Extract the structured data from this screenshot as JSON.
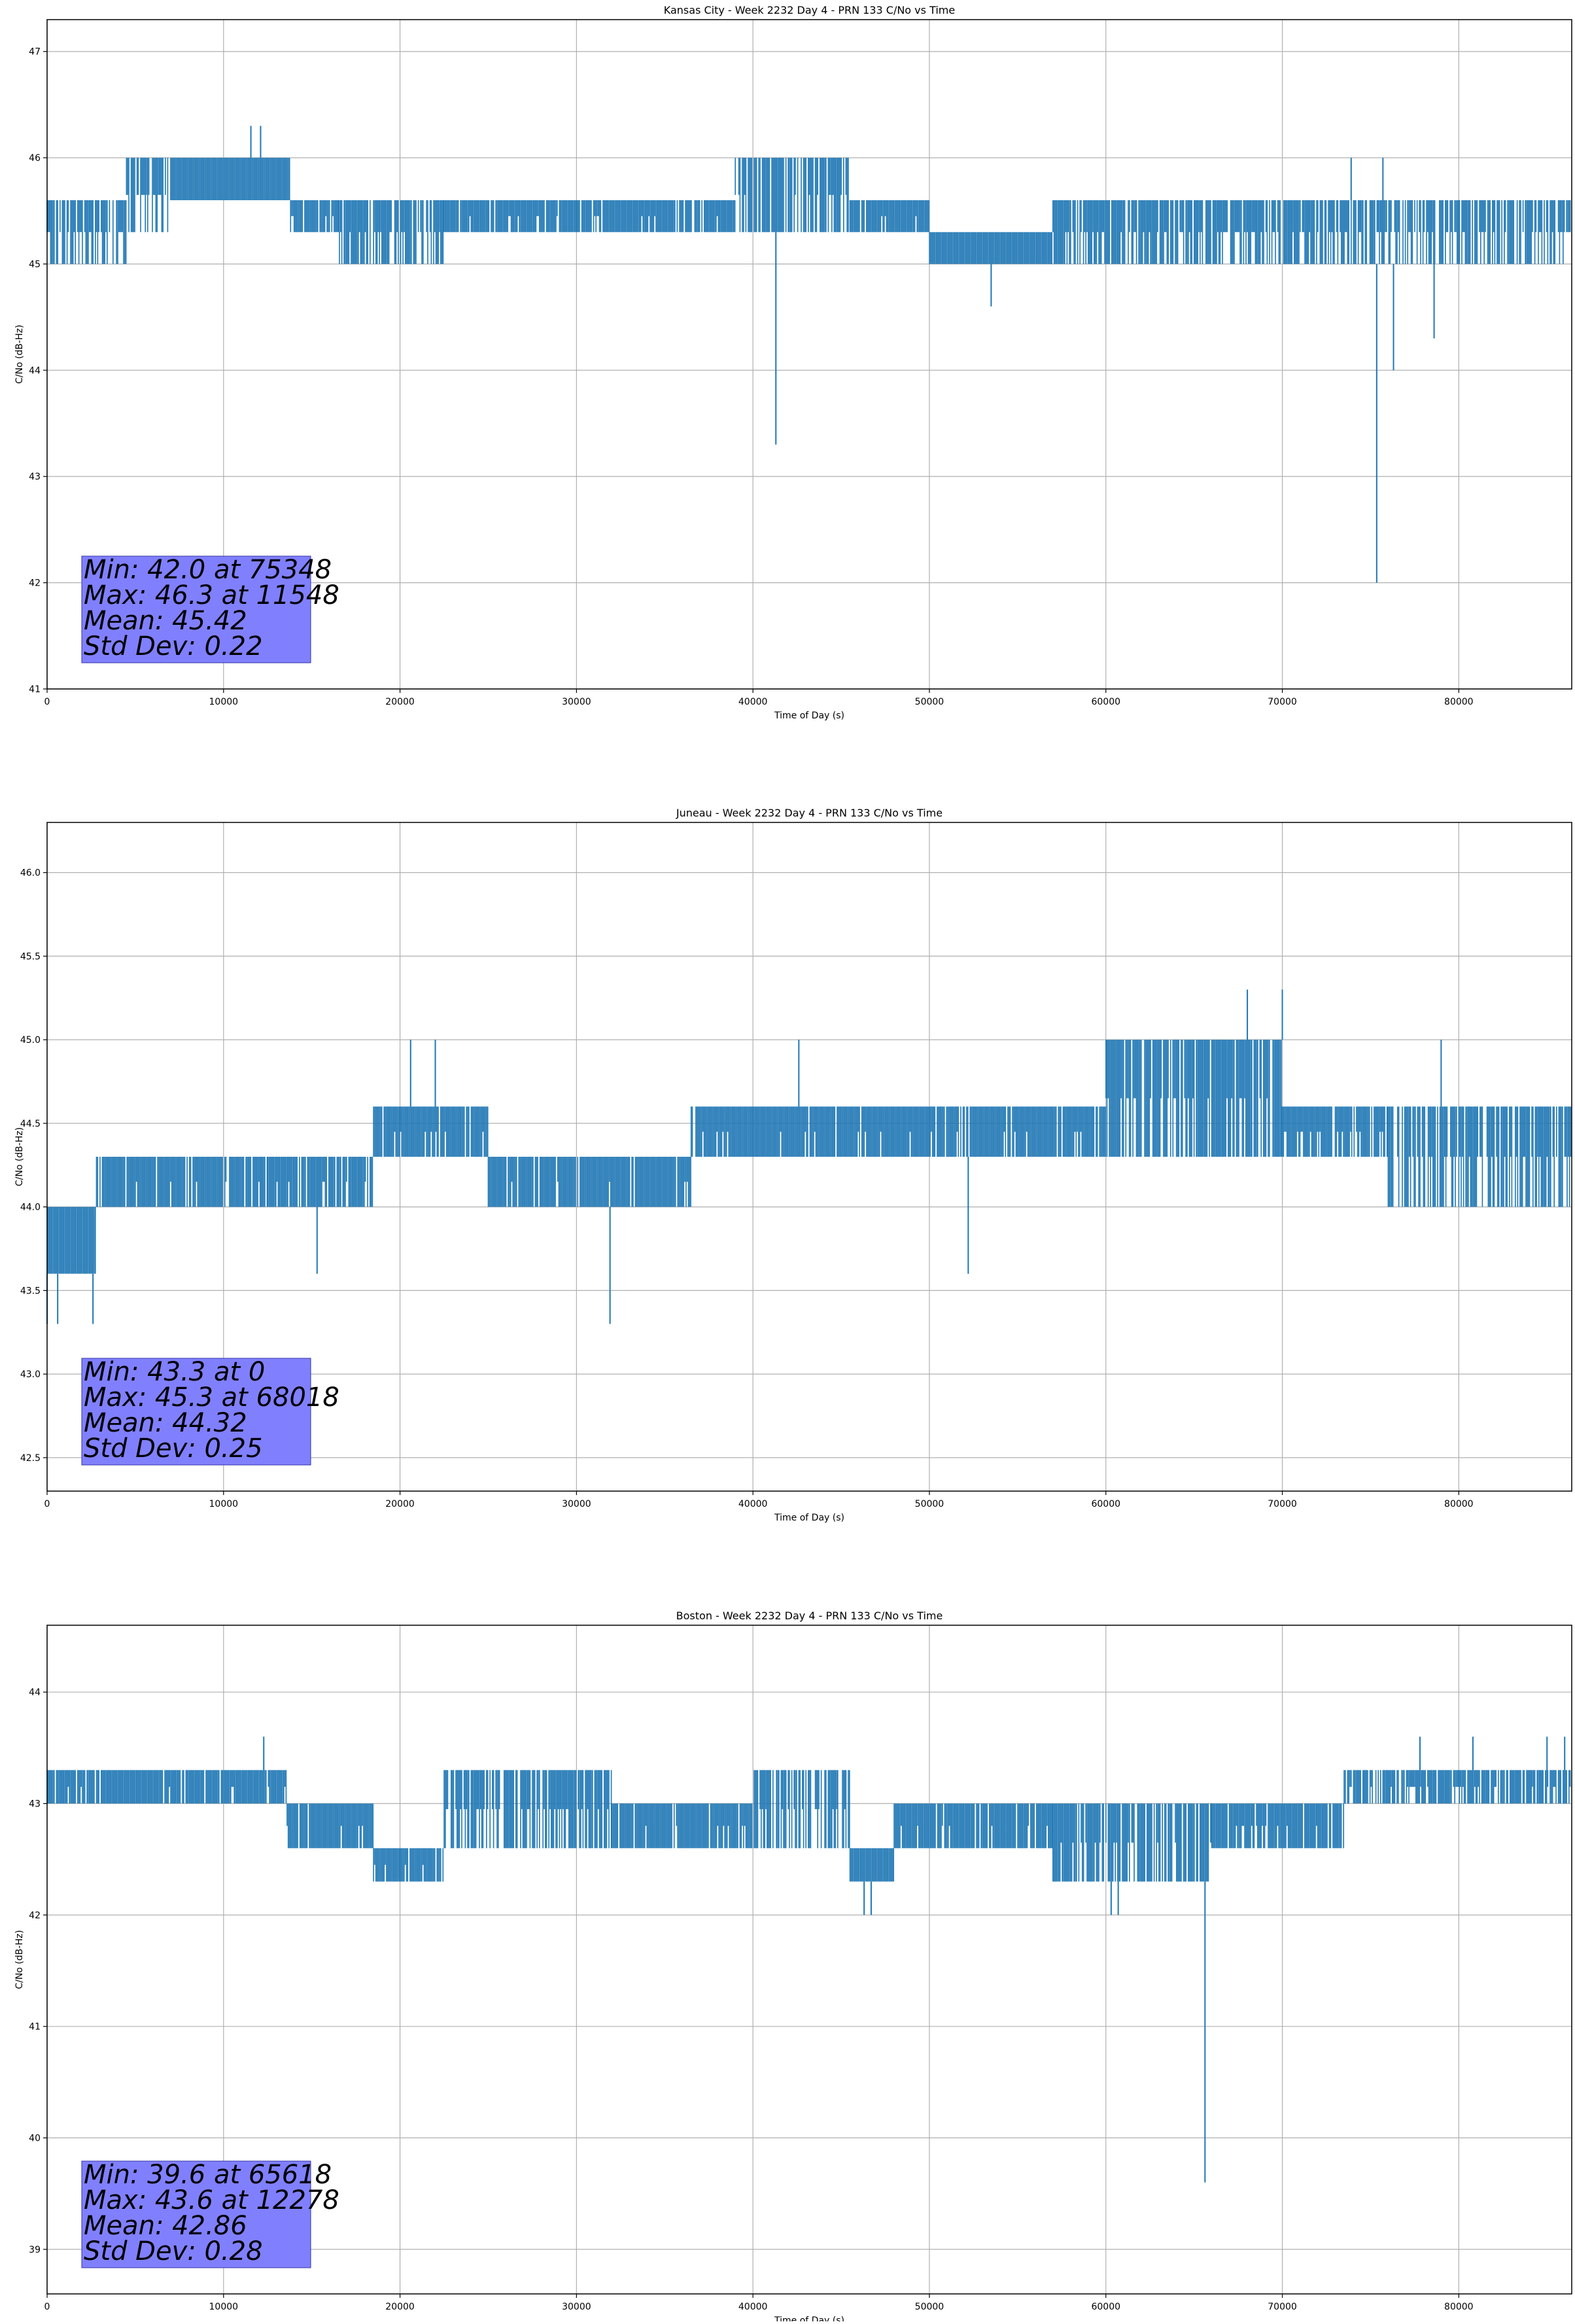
{
  "chart_data": [
    {
      "type": "line",
      "title": "Kansas City - Week 2232 Day 4 - PRN 133 C/No vs Time",
      "xlabel": "Time of Day (s)",
      "ylabel": "C/No (dB-Hz)",
      "xlim": [
        0,
        86400
      ],
      "ylim": [
        41,
        47.3
      ],
      "xticks": [
        0,
        10000,
        20000,
        30000,
        40000,
        50000,
        60000,
        70000,
        80000
      ],
      "yticks": [
        41,
        42,
        43,
        44,
        45,
        46,
        47
      ],
      "ytick_labels": [
        "41",
        "42",
        "43",
        "44",
        "45",
        "46",
        "47"
      ],
      "grid": true,
      "series_color": "#1f77b4",
      "segments": [
        {
          "x": [
            0,
            4500
          ],
          "y": [
            45.0,
            45.6
          ],
          "dense": 0.5
        },
        {
          "x": [
            4500,
            7000
          ],
          "y": [
            45.3,
            46.0
          ],
          "dense": 0.6
        },
        {
          "x": [
            7000,
            13800
          ],
          "y": [
            45.6,
            46.0
          ],
          "dense": 1.0
        },
        {
          "x": [
            13800,
            16500
          ],
          "y": [
            45.3,
            45.6
          ],
          "dense": 0.9
        },
        {
          "x": [
            16500,
            22500
          ],
          "y": [
            45.0,
            45.6
          ],
          "dense": 0.6
        },
        {
          "x": [
            22500,
            39000
          ],
          "y": [
            45.3,
            45.6
          ],
          "dense": 0.9
        },
        {
          "x": [
            39000,
            45500
          ],
          "y": [
            45.3,
            46.0
          ],
          "dense": 0.6
        },
        {
          "x": [
            45500,
            50000
          ],
          "y": [
            45.3,
            45.6
          ],
          "dense": 0.9
        },
        {
          "x": [
            50000,
            57000
          ],
          "y": [
            45.0,
            45.3
          ],
          "dense": 1.0
        },
        {
          "x": [
            57000,
            73500
          ],
          "y": [
            45.0,
            45.6
          ],
          "dense": 0.6
        },
        {
          "x": [
            73500,
            86400
          ],
          "y": [
            45.0,
            45.6
          ],
          "dense": 0.55
        }
      ],
      "spikes": [
        {
          "x": 11548,
          "y": 46.3
        },
        {
          "x": 12100,
          "y": 46.3
        },
        {
          "x": 41300,
          "y": 43.3
        },
        {
          "x": 53500,
          "y": 44.6
        },
        {
          "x": 73900,
          "y": 46.0
        },
        {
          "x": 75348,
          "y": 42.0
        },
        {
          "x": 75700,
          "y": 46.0
        },
        {
          "x": 76300,
          "y": 44.0
        },
        {
          "x": 78600,
          "y": 44.3
        }
      ],
      "stats_box": [
        "Min: 42.0 at 75348",
        "Max: 46.3 at 11548",
        "Mean: 45.42",
        "Std Dev: 0.22"
      ]
    },
    {
      "type": "line",
      "title": "Juneau - Week 2232 Day 4 - PRN 133 C/No vs Time",
      "xlabel": "Time of Day (s)",
      "ylabel": "C/No (dB-Hz)",
      "xlim": [
        0,
        86400
      ],
      "ylim": [
        42.3,
        46.3
      ],
      "xticks": [
        0,
        10000,
        20000,
        30000,
        40000,
        50000,
        60000,
        70000,
        80000
      ],
      "yticks": [
        42.5,
        43.0,
        43.5,
        44.0,
        44.5,
        45.0,
        45.5,
        46.0
      ],
      "ytick_labels": [
        "42.5",
        "43.0",
        "43.5",
        "44.0",
        "44.5",
        "45.0",
        "45.5",
        "46.0"
      ],
      "grid": true,
      "series_color": "#1f77b4",
      "segments": [
        {
          "x": [
            0,
            2800
          ],
          "y": [
            43.6,
            44.0
          ],
          "dense": 1.0
        },
        {
          "x": [
            2800,
            12500
          ],
          "y": [
            44.0,
            44.3
          ],
          "dense": 0.9
        },
        {
          "x": [
            12500,
            18500
          ],
          "y": [
            44.0,
            44.3
          ],
          "dense": 0.8
        },
        {
          "x": [
            18500,
            25000
          ],
          "y": [
            44.3,
            44.6
          ],
          "dense": 0.9
        },
        {
          "x": [
            25000,
            36500
          ],
          "y": [
            44.0,
            44.3
          ],
          "dense": 0.9
        },
        {
          "x": [
            36500,
            60000
          ],
          "y": [
            44.3,
            44.6
          ],
          "dense": 0.9
        },
        {
          "x": [
            60000,
            65000
          ],
          "y": [
            44.3,
            45.0
          ],
          "dense": 0.7
        },
        {
          "x": [
            65000,
            70000
          ],
          "y": [
            44.3,
            45.0
          ],
          "dense": 0.8
        },
        {
          "x": [
            70000,
            76000
          ],
          "y": [
            44.3,
            44.6
          ],
          "dense": 0.8
        },
        {
          "x": [
            76000,
            86400
          ],
          "y": [
            44.0,
            44.6
          ],
          "dense": 0.6
        }
      ],
      "spikes": [
        {
          "x": 0,
          "y": 43.3
        },
        {
          "x": 600,
          "y": 43.3
        },
        {
          "x": 2600,
          "y": 43.3
        },
        {
          "x": 15300,
          "y": 43.6
        },
        {
          "x": 20600,
          "y": 45.0
        },
        {
          "x": 22000,
          "y": 45.0
        },
        {
          "x": 31900,
          "y": 43.3
        },
        {
          "x": 42600,
          "y": 45.0
        },
        {
          "x": 52200,
          "y": 43.6
        },
        {
          "x": 68018,
          "y": 45.3
        },
        {
          "x": 70000,
          "y": 45.3
        },
        {
          "x": 79000,
          "y": 45.0
        }
      ],
      "stats_box": [
        "Min: 43.3 at 0",
        "Max: 45.3 at 68018",
        "Mean: 44.32",
        "Std Dev: 0.25"
      ]
    },
    {
      "type": "line",
      "title": "Boston - Week 2232 Day 4 - PRN 133 C/No vs Time",
      "xlabel": "Time of Day (s)",
      "ylabel": "C/No (dB-Hz)",
      "xlim": [
        0,
        86400
      ],
      "ylim": [
        38.6,
        44.6
      ],
      "xticks": [
        0,
        10000,
        20000,
        30000,
        40000,
        50000,
        60000,
        70000,
        80000
      ],
      "yticks": [
        39,
        40,
        41,
        42,
        43,
        44
      ],
      "ytick_labels": [
        "39",
        "40",
        "41",
        "42",
        "43",
        "44"
      ],
      "grid": true,
      "series_color": "#1f77b4",
      "segments": [
        {
          "x": [
            0,
            13600
          ],
          "y": [
            43.0,
            43.3
          ],
          "dense": 0.9
        },
        {
          "x": [
            13600,
            18500
          ],
          "y": [
            42.6,
            43.0
          ],
          "dense": 0.9
        },
        {
          "x": [
            18500,
            22500
          ],
          "y": [
            42.3,
            42.6
          ],
          "dense": 0.9
        },
        {
          "x": [
            22500,
            32000
          ],
          "y": [
            42.6,
            43.3
          ],
          "dense": 0.6
        },
        {
          "x": [
            32000,
            40000
          ],
          "y": [
            42.6,
            43.0
          ],
          "dense": 0.9
        },
        {
          "x": [
            40000,
            45500
          ],
          "y": [
            42.6,
            43.3
          ],
          "dense": 0.6
        },
        {
          "x": [
            45500,
            48000
          ],
          "y": [
            42.3,
            42.6
          ],
          "dense": 1.0
        },
        {
          "x": [
            48000,
            57000
          ],
          "y": [
            42.6,
            43.0
          ],
          "dense": 0.9
        },
        {
          "x": [
            57000,
            66000
          ],
          "y": [
            42.3,
            43.0
          ],
          "dense": 0.7
        },
        {
          "x": [
            66000,
            73500
          ],
          "y": [
            42.6,
            43.0
          ],
          "dense": 0.9
        },
        {
          "x": [
            73500,
            86400
          ],
          "y": [
            43.0,
            43.3
          ],
          "dense": 0.7
        }
      ],
      "spikes": [
        {
          "x": 12278,
          "y": 43.6
        },
        {
          "x": 46300,
          "y": 42.0
        },
        {
          "x": 46700,
          "y": 42.0
        },
        {
          "x": 60300,
          "y": 42.0
        },
        {
          "x": 60700,
          "y": 42.0
        },
        {
          "x": 65618,
          "y": 39.6
        },
        {
          "x": 77800,
          "y": 43.6
        },
        {
          "x": 80800,
          "y": 43.6
        },
        {
          "x": 85000,
          "y": 43.6
        },
        {
          "x": 86000,
          "y": 43.6
        }
      ],
      "stats_box": [
        "Min: 39.6 at 65618",
        "Max: 43.6 at 12278",
        "Mean: 42.86",
        "Std Dev: 0.28"
      ]
    }
  ]
}
